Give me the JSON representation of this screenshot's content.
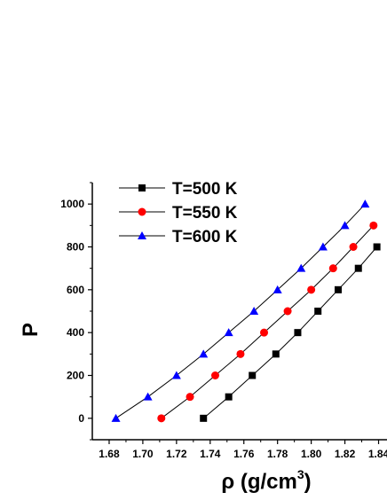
{
  "chart_data": {
    "type": "line",
    "xlabel": "ρ (g/cm3)",
    "xlabel_parts": {
      "main": "ρ (g/cm",
      "superscript": "3",
      "close": ")"
    },
    "ylabel": "P",
    "xlim": [
      1.67,
      1.845
    ],
    "ylim": [
      -100,
      1100
    ],
    "x_ticks": [
      1.68,
      1.7,
      1.72,
      1.74,
      1.76,
      1.78,
      1.8,
      1.82,
      1.84
    ],
    "x_tick_labels": [
      "1.68",
      "1.70",
      "1.72",
      "1.74",
      "1.76",
      "1.78",
      "1.80",
      "1.82",
      "1.84"
    ],
    "y_ticks": [
      0,
      200,
      400,
      600,
      800,
      1000
    ],
    "y_tick_labels": [
      "0",
      "200",
      "400",
      "600",
      "800",
      "1000"
    ],
    "legend_position": "top-left",
    "series": [
      {
        "name": "T=500 K",
        "color": "#000000",
        "marker": "square",
        "x": [
          1.736,
          1.751,
          1.765,
          1.779,
          1.792,
          1.804,
          1.816,
          1.828,
          1.839
        ],
        "y": [
          0,
          100,
          200,
          300,
          400,
          500,
          600,
          700,
          800
        ]
      },
      {
        "name": "T=550 K",
        "color": "#ff0000",
        "marker": "circle",
        "x": [
          1.711,
          1.728,
          1.743,
          1.758,
          1.772,
          1.786,
          1.8,
          1.813,
          1.825,
          1.837
        ],
        "y": [
          0,
          100,
          200,
          300,
          400,
          500,
          600,
          700,
          800,
          900
        ]
      },
      {
        "name": "T=600 K",
        "color": "#0000ff",
        "marker": "triangle",
        "x": [
          1.684,
          1.703,
          1.72,
          1.736,
          1.751,
          1.766,
          1.78,
          1.794,
          1.807,
          1.82,
          1.832
        ],
        "y": [
          0,
          100,
          200,
          300,
          400,
          500,
          600,
          700,
          800,
          900,
          1000
        ]
      }
    ]
  }
}
